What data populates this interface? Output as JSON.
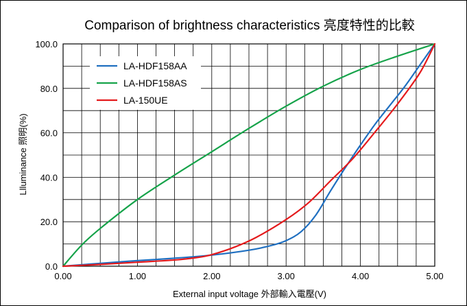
{
  "chart_data": {
    "type": "line",
    "title": "Comparison of brightness characteristics 亮度特性的比較",
    "xlabel": "External input voltage 外部輸入電壓(V)",
    "ylabel": "Llluminance 照明(%)",
    "xlim": [
      0,
      5
    ],
    "ylim": [
      0,
      100
    ],
    "grid": "on",
    "legend_position": "top-left",
    "x_ticks": [
      "0.00",
      "1.00",
      "2.00",
      "3.00",
      "4.00",
      "5.00"
    ],
    "y_ticks": [
      "0.0",
      "20.0",
      "40.0",
      "60.0",
      "80.0",
      "100.0"
    ],
    "series": [
      {
        "name": "LA-HDF158AA",
        "color": "#1f6fc0",
        "x": [
          0,
          0.5,
          1.0,
          1.5,
          2.0,
          2.5,
          2.8,
          3.0,
          3.2,
          3.4,
          3.6,
          3.8,
          4.0,
          4.2,
          4.4,
          4.6,
          4.8,
          5.0
        ],
        "y": [
          0,
          1.3,
          2.5,
          3.6,
          5.0,
          7.2,
          9.3,
          11.5,
          15.5,
          23.0,
          34.0,
          44.5,
          54.5,
          64.0,
          72.5,
          81.0,
          90.5,
          100
        ]
      },
      {
        "name": "LA-HDF158AS",
        "color": "#16a34a",
        "x": [
          0,
          0.25,
          0.5,
          1.0,
          1.5,
          2.0,
          2.5,
          3.0,
          3.5,
          4.0,
          4.5,
          5.0
        ],
        "y": [
          0,
          9.5,
          17.0,
          30.0,
          41.0,
          51.5,
          62.0,
          72.0,
          81.0,
          88.5,
          94.5,
          100
        ]
      },
      {
        "name": "LA-150UE",
        "color": "#e41a1c",
        "x": [
          0,
          0.5,
          1.0,
          1.5,
          1.8,
          2.0,
          2.3,
          2.6,
          3.0,
          3.3,
          3.6,
          3.9,
          4.2,
          4.5,
          4.8,
          5.0
        ],
        "y": [
          0,
          0.8,
          1.8,
          2.8,
          3.9,
          5.2,
          8.5,
          13.0,
          21.0,
          28.5,
          38.5,
          48.5,
          60.5,
          73.0,
          87.0,
          100
        ]
      }
    ]
  }
}
